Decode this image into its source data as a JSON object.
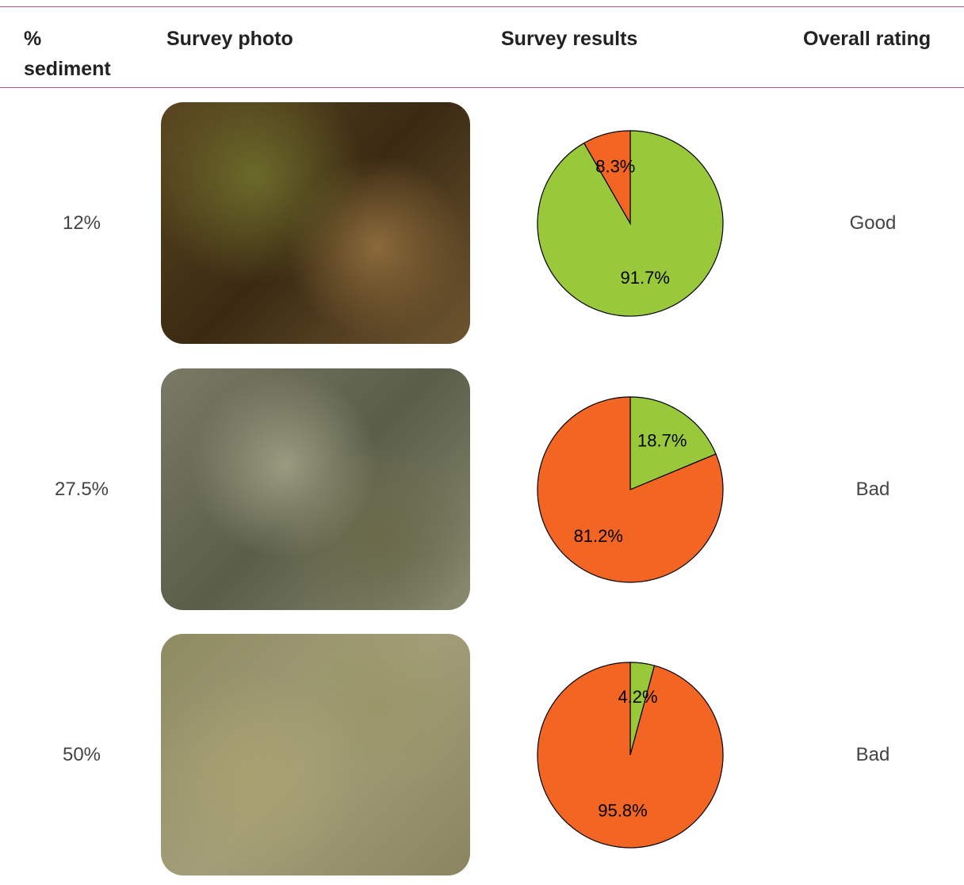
{
  "table": {
    "headers": [
      "% sediment",
      "Survey photo",
      "Survey results",
      "Overall rating"
    ],
    "rows": [
      {
        "sediment": "12%",
        "chart": {
          "type": "pie",
          "values": [
            91.7,
            8.3
          ],
          "value_labels": [
            "91.7%",
            "8.3%"
          ],
          "colors": [
            "#99c83b",
            "#f26522"
          ]
        },
        "rating": "Good"
      },
      {
        "sediment": "27.5%",
        "chart": {
          "type": "pie",
          "values": [
            18.7,
            81.2
          ],
          "value_labels": [
            "18.7%",
            "81.2%"
          ],
          "colors": [
            "#99c83b",
            "#f26522"
          ]
        },
        "rating": "Bad"
      },
      {
        "sediment": "50%",
        "chart": {
          "type": "pie",
          "values": [
            4.2,
            95.8
          ],
          "value_labels": [
            "4.2%",
            "95.8%"
          ],
          "colors": [
            "#99c83b",
            "#f26522"
          ]
        },
        "rating": "Bad"
      }
    ]
  }
}
